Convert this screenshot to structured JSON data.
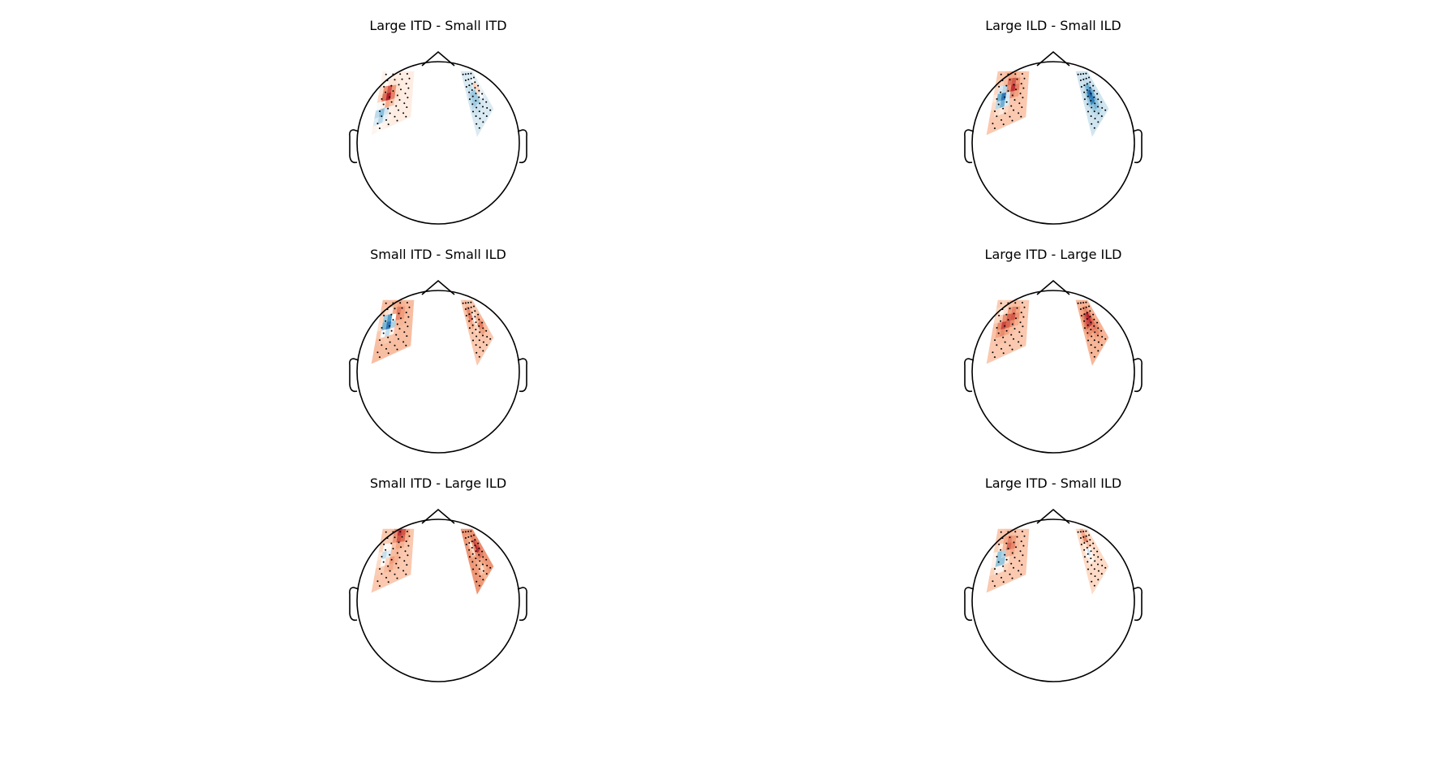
{
  "figure": {
    "colormap": "RdBu_r",
    "colors": {
      "outline": "#000000",
      "sensor_dot": "#000000",
      "max_red": "#b2182b",
      "max_blue": "#2166ac"
    },
    "panels": [
      {
        "id": "p1",
        "title": "Large ITD - Small ITD",
        "left": {
          "base": 0.05,
          "blobs": [
            [
              0.3,
              0.4,
              0.75
            ],
            [
              0.18,
              0.7,
              -0.35
            ],
            [
              0.25,
              0.2,
              -0.12
            ]
          ]
        },
        "right": {
          "base": -0.08,
          "blobs": [
            [
              0.7,
              0.4,
              0.45
            ],
            [
              0.6,
              0.45,
              -0.35
            ],
            [
              0.3,
              0.5,
              -0.15
            ]
          ]
        }
      },
      {
        "id": "p2",
        "title": "Large ILD - Small ILD",
        "left": {
          "base": 0.15,
          "blobs": [
            [
              0.3,
              0.45,
              -0.85
            ],
            [
              0.55,
              0.3,
              0.5
            ],
            [
              0.45,
              0.2,
              0.12
            ]
          ]
        },
        "right": {
          "base": -0.1,
          "blobs": [
            [
              0.55,
              0.45,
              -0.55
            ],
            [
              0.45,
              0.5,
              -0.25
            ],
            [
              0.6,
              0.7,
              -0.15
            ]
          ]
        }
      },
      {
        "id": "p3",
        "title": "Small ITD - Small ILD",
        "left": {
          "base": 0.18,
          "blobs": [
            [
              0.3,
              0.4,
              -0.9
            ],
            [
              0.55,
              0.25,
              0.25
            ]
          ]
        },
        "right": {
          "base": 0.15,
          "blobs": [
            [
              0.55,
              0.4,
              -0.3
            ],
            [
              0.4,
              0.3,
              0.4
            ],
            [
              0.75,
              0.55,
              0.3
            ]
          ]
        }
      },
      {
        "id": "p4",
        "title": "Large ITD - Large ILD",
        "left": {
          "base": 0.15,
          "blobs": [
            [
              0.3,
              0.4,
              0.6
            ],
            [
              0.25,
              0.3,
              -0.35
            ],
            [
              0.55,
              0.3,
              0.35
            ]
          ]
        },
        "right": {
          "base": 0.2,
          "blobs": [
            [
              0.55,
              0.35,
              0.55
            ],
            [
              0.3,
              0.4,
              0.3
            ],
            [
              0.7,
              0.6,
              0.2
            ]
          ]
        }
      },
      {
        "id": "p5",
        "title": "Small ITD - Large ILD",
        "left": {
          "base": 0.15,
          "blobs": [
            [
              0.25,
              0.45,
              -0.35
            ],
            [
              0.6,
              0.1,
              0.55
            ],
            [
              0.4,
              0.55,
              0.2
            ]
          ]
        },
        "right": {
          "base": 0.3,
          "blobs": [
            [
              0.7,
              0.4,
              0.45
            ],
            [
              0.45,
              0.35,
              -0.3
            ],
            [
              0.55,
              0.8,
              -0.2
            ]
          ]
        }
      },
      {
        "id": "p6",
        "title": "Large ITD - Small ILD",
        "left": {
          "base": 0.15,
          "blobs": [
            [
              0.25,
              0.5,
              -0.55
            ],
            [
              0.45,
              0.3,
              0.35
            ]
          ]
        },
        "right": {
          "base": 0.1,
          "blobs": [
            [
              0.5,
              0.2,
              0.35
            ],
            [
              0.45,
              0.4,
              -0.25
            ]
          ]
        }
      }
    ]
  }
}
